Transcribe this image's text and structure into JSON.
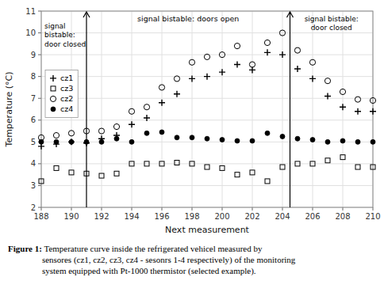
{
  "chart_data": {
    "type": "scatter",
    "xlabel": "Next measurement",
    "ylabel": "Temperature (°C)",
    "xlim": [
      188,
      210
    ],
    "ylim": [
      2,
      11
    ],
    "xticks": [
      188,
      190,
      192,
      194,
      196,
      198,
      200,
      202,
      204,
      206,
      208,
      210
    ],
    "yticks": [
      2,
      3,
      4,
      5,
      6,
      7,
      8,
      9,
      10,
      11
    ],
    "grid": true,
    "legend": "upper left",
    "series": [
      {
        "name": "cz1",
        "color": "#000000",
        "marker": "plus",
        "x": [
          188,
          189,
          190,
          191,
          192,
          193,
          194,
          195,
          196,
          197,
          198,
          199,
          200,
          201,
          202,
          203,
          204,
          205,
          206,
          207,
          208,
          209,
          210
        ],
        "values": [
          4.8,
          4.9,
          5.0,
          4.95,
          5.15,
          5.3,
          5.8,
          6.1,
          6.8,
          7.2,
          7.9,
          8.0,
          8.2,
          8.55,
          8.3,
          9.1,
          9.0,
          8.35,
          7.9,
          7.1,
          6.6,
          6.4,
          6.4
        ]
      },
      {
        "name": "cz3",
        "color": "#000000",
        "marker": "square-open",
        "x": [
          188,
          189,
          190,
          191,
          192,
          193,
          194,
          195,
          196,
          197,
          198,
          199,
          200,
          201,
          202,
          203,
          204,
          205,
          206,
          207,
          208,
          209,
          210
        ],
        "values": [
          3.2,
          3.8,
          3.6,
          3.55,
          3.45,
          3.55,
          4.0,
          4.0,
          4.0,
          4.05,
          4.0,
          3.85,
          3.8,
          3.5,
          3.6,
          3.2,
          3.85,
          4.0,
          4.0,
          4.15,
          4.3,
          3.85,
          3.85
        ]
      },
      {
        "name": "cz2",
        "color": "#000000",
        "marker": "circle-open",
        "x": [
          188,
          189,
          190,
          191,
          192,
          193,
          194,
          195,
          196,
          197,
          198,
          199,
          200,
          201,
          202,
          203,
          204,
          205,
          206,
          207,
          208,
          209,
          210
        ],
        "values": [
          5.2,
          5.3,
          5.4,
          5.5,
          5.5,
          5.7,
          6.4,
          6.6,
          7.5,
          7.9,
          8.65,
          8.9,
          9.0,
          9.4,
          8.55,
          9.55,
          10.0,
          9.2,
          8.65,
          7.8,
          7.3,
          6.95,
          6.9
        ]
      },
      {
        "name": "cz4",
        "color": "#000000",
        "marker": "circle",
        "x": [
          188,
          189,
          190,
          191,
          192,
          193,
          194,
          195,
          196,
          197,
          198,
          199,
          200,
          201,
          202,
          203,
          204,
          205,
          206,
          207,
          208,
          209,
          210
        ],
        "values": [
          5.0,
          5.0,
          5.0,
          5.0,
          5.0,
          5.15,
          5.0,
          5.4,
          5.45,
          5.2,
          5.2,
          5.15,
          5.1,
          5.05,
          5.05,
          5.4,
          5.25,
          5.15,
          5.1,
          5.0,
          5.05,
          5.0,
          5.0
        ]
      }
    ],
    "vlines": [
      191,
      204.5
    ],
    "annotations": [
      "signal\nbistable:\ndoor closed",
      "signal bistable: doors open",
      "signal bistable:\ndoor closed"
    ],
    "caption": {
      "label": "Figure 1:",
      "text": " Temperature curve inside the refrigerated vehicel measured by\nsensores (cz1, cz2, cz3, cz4 - sesonrs 1-4 respectively) of the monitoring\nsystem equipped with Pt-1000 thermistor (selected example)."
    }
  }
}
